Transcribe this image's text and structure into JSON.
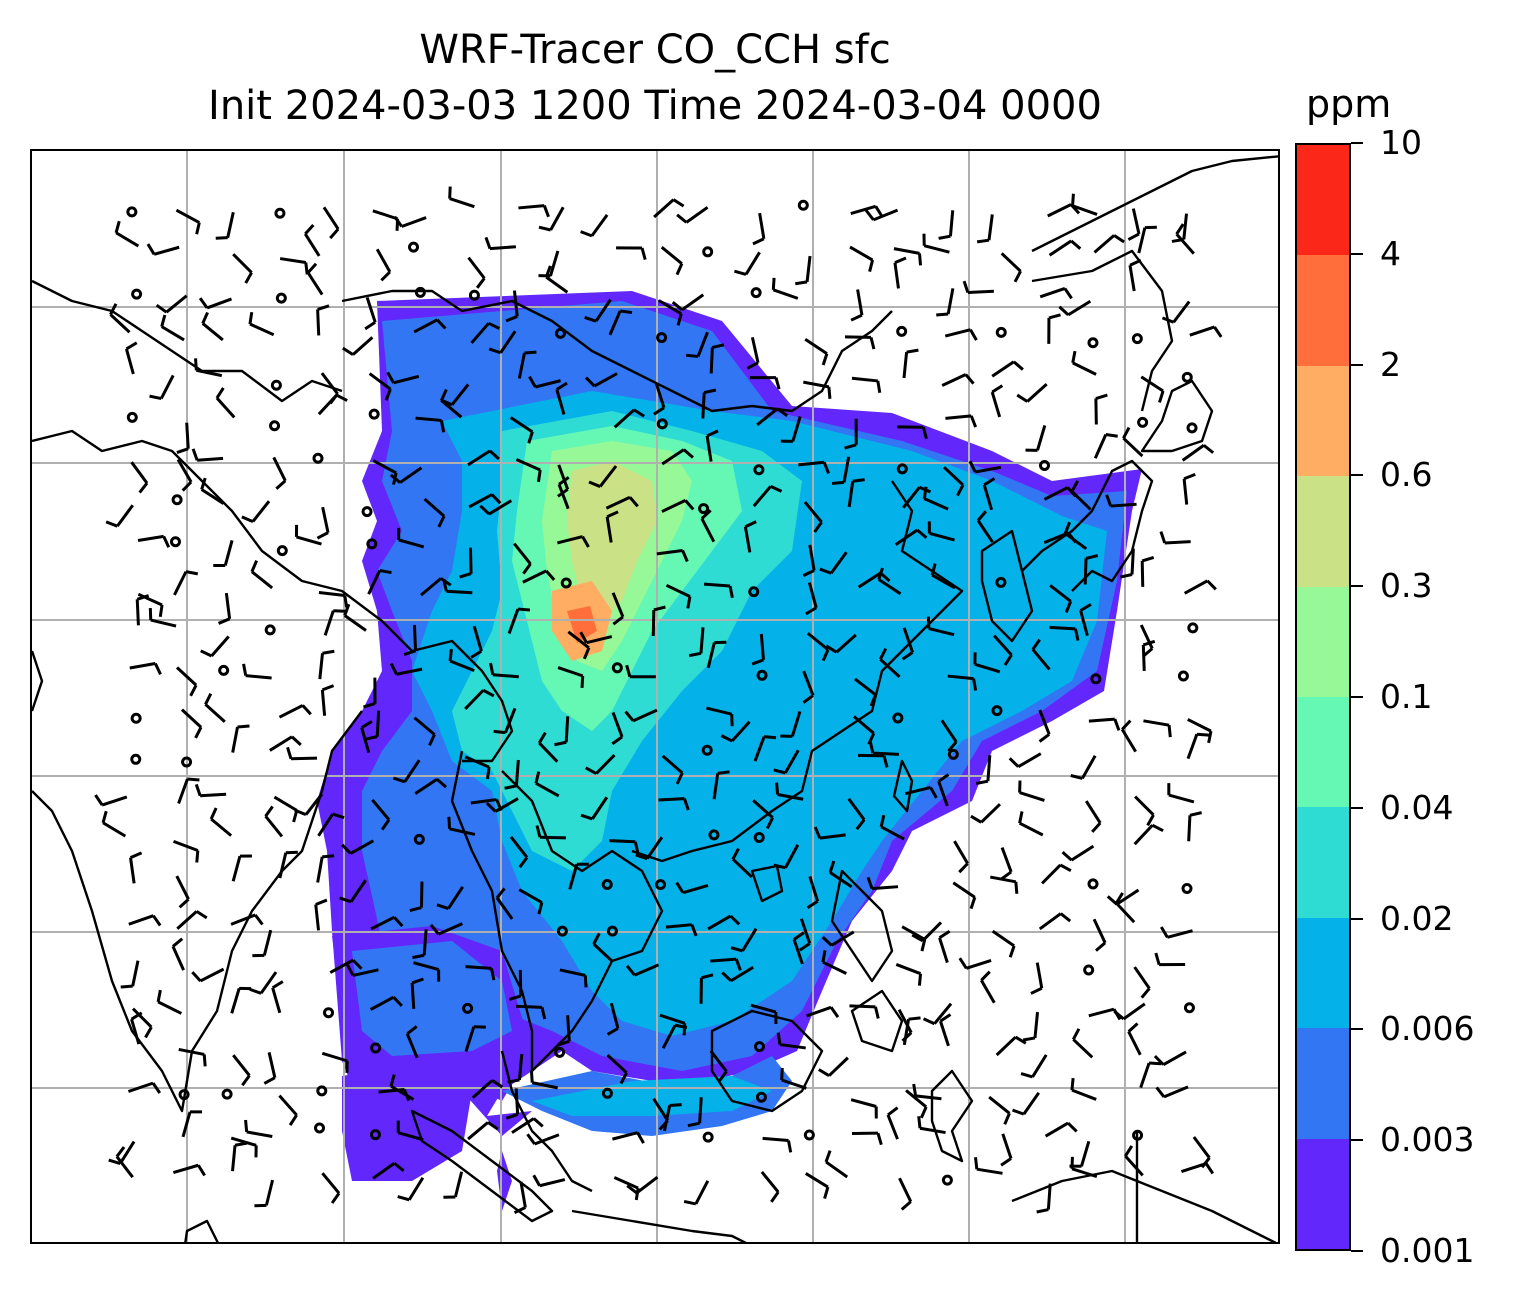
{
  "title": {
    "line1": "WRF-Tracer CO_CCH sfc",
    "line2": "Init 2024-03-03 1200 Time 2024-03-04 0000"
  },
  "colorbar": {
    "unit": "ppm",
    "levels": [
      "0.001",
      "0.003",
      "0.006",
      "0.02",
      "0.04",
      "0.1",
      "0.3",
      "0.6",
      "2",
      "4",
      "10"
    ],
    "colors": [
      "#6227fa",
      "#3376f4",
      "#04b1e8",
      "#2fdcd3",
      "#65f8b5",
      "#96f896",
      "#cbe186",
      "#fead63",
      "#ff6e3b",
      "#fb2719"
    ]
  },
  "map": {
    "land_color": "#ffffff",
    "coast_color": "#000000",
    "grid_color": "#b0b0b0",
    "wind_barbs": true
  }
}
